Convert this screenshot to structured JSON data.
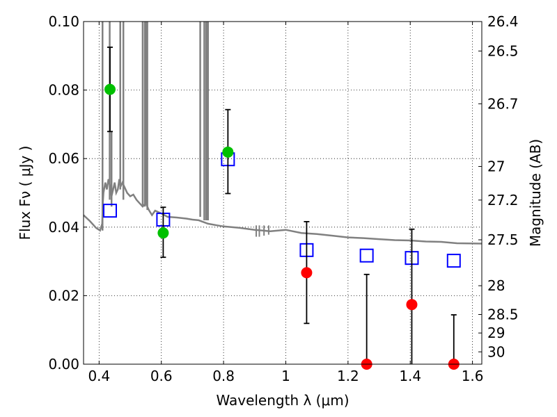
{
  "chart_data": {
    "type": "scatter",
    "xlabel": "Wavelength  λ (μm)",
    "ylabel": "Flux  Fν  ( μJy )",
    "y2label": "Magnitude (AB)",
    "xlim": [
      0.35,
      1.63
    ],
    "ylim": [
      0.0,
      0.1
    ],
    "grid": true,
    "grid_style": "dotted",
    "x_ticks": [
      0.4,
      0.6,
      0.8,
      1.0,
      1.2,
      1.4,
      1.6
    ],
    "x_tick_labels": [
      "0.4",
      "0.6",
      "0.8",
      "1",
      "1.2",
      "1.4",
      "1.6"
    ],
    "y_ticks": [
      0.0,
      0.02,
      0.04,
      0.06,
      0.08,
      0.1
    ],
    "y_tick_labels": [
      "0.00",
      "0.02",
      "0.04",
      "0.06",
      "0.08",
      "0.10"
    ],
    "y2_ticks": [
      {
        "label": "26.4",
        "flux": 0.1
      },
      {
        "label": "26.5",
        "flux": 0.0914
      },
      {
        "label": "26.7",
        "flux": 0.076
      },
      {
        "label": "27",
        "flux": 0.0577
      },
      {
        "label": "27.2",
        "flux": 0.0479
      },
      {
        "label": "27.5",
        "flux": 0.0363
      },
      {
        "label": "28",
        "flux": 0.0229
      },
      {
        "label": "28.5",
        "flux": 0.0145
      },
      {
        "label": "29",
        "flux": 0.0091
      },
      {
        "label": "30",
        "flux": 0.0036
      }
    ],
    "model_spectrum": {
      "color": "#808080",
      "x": [
        0.35,
        0.37,
        0.39,
        0.403,
        0.41,
        0.412,
        0.414,
        0.42,
        0.425,
        0.43,
        0.435,
        0.44,
        0.445,
        0.45,
        0.455,
        0.46,
        0.465,
        0.47,
        0.475,
        0.48,
        0.49,
        0.5,
        0.51,
        0.52,
        0.53,
        0.54,
        0.55,
        0.56,
        0.57,
        0.58,
        0.6,
        0.62,
        0.65,
        0.68,
        0.7,
        0.72,
        0.75,
        0.78,
        0.8,
        0.85,
        0.9,
        0.95,
        1.0,
        1.05,
        1.1,
        1.15,
        1.2,
        1.25,
        1.3,
        1.35,
        1.4,
        1.45,
        1.5,
        1.55,
        1.63
      ],
      "y": [
        0.0435,
        0.0418,
        0.0398,
        0.039,
        0.041,
        0.047,
        0.05,
        0.053,
        0.051,
        0.054,
        0.052,
        0.049,
        0.051,
        0.053,
        0.05,
        0.051,
        0.054,
        0.052,
        0.053,
        0.052,
        0.05,
        0.049,
        0.0495,
        0.048,
        0.047,
        0.046,
        0.047,
        0.045,
        0.0435,
        0.0448,
        0.044,
        0.043,
        0.0428,
        0.0425,
        0.0422,
        0.042,
        0.041,
        0.0405,
        0.0402,
        0.0398,
        0.0392,
        0.0388,
        0.0392,
        0.0383,
        0.038,
        0.0375,
        0.037,
        0.0368,
        0.0365,
        0.0362,
        0.0361,
        0.0358,
        0.0357,
        0.0353,
        0.0352
      ],
      "emission_lines": [
        {
          "x": 0.411,
          "ymin": 0.039,
          "ymax": 0.1
        },
        {
          "x": 0.434,
          "ymin": 0.048,
          "ymax": 0.1
        },
        {
          "x": 0.44,
          "ymin": 0.046,
          "ymax": 0.068
        },
        {
          "x": 0.468,
          "ymin": 0.051,
          "ymax": 0.1
        },
        {
          "x": 0.478,
          "ymin": 0.048,
          "ymax": 0.1
        },
        {
          "x": 0.54,
          "ymin": 0.046,
          "ymax": 0.1
        },
        {
          "x": 0.547,
          "ymin": 0.046,
          "ymax": 0.1
        },
        {
          "x": 0.551,
          "ymin": 0.047,
          "ymax": 0.1
        },
        {
          "x": 0.555,
          "ymin": 0.045,
          "ymax": 0.1
        },
        {
          "x": 0.725,
          "ymin": 0.043,
          "ymax": 0.1
        },
        {
          "x": 0.738,
          "ymin": 0.042,
          "ymax": 0.1
        },
        {
          "x": 0.744,
          "ymin": 0.042,
          "ymax": 0.1
        },
        {
          "x": 0.747,
          "ymin": 0.042,
          "ymax": 0.1
        },
        {
          "x": 0.75,
          "ymin": 0.042,
          "ymax": 0.1
        }
      ],
      "absorption_dips": [
        {
          "x": 0.905,
          "ymin": 0.0372,
          "ymax": 0.0405
        },
        {
          "x": 0.915,
          "ymin": 0.0372,
          "ymax": 0.0405
        },
        {
          "x": 0.93,
          "ymin": 0.0375,
          "ymax": 0.0405
        },
        {
          "x": 0.945,
          "ymin": 0.0378,
          "ymax": 0.0405
        }
      ]
    },
    "model_photometry": {
      "marker": "open-square",
      "color": "#0000ff",
      "x": [
        0.435,
        0.606,
        0.814,
        1.067,
        1.26,
        1.405,
        1.54
      ],
      "y": [
        0.0448,
        0.0422,
        0.0598,
        0.0333,
        0.0317,
        0.031,
        0.0302
      ]
    },
    "observed_detections": {
      "marker": "filled-circle",
      "color": "#00c000",
      "x": [
        0.435,
        0.606,
        0.814
      ],
      "y": [
        0.0802,
        0.0383,
        0.0619
      ],
      "err_low": [
        0.0679,
        0.0312,
        0.0498
      ],
      "err_high": [
        0.0925,
        0.0458,
        0.0743
      ]
    },
    "observed_low_sn": {
      "marker": "filled-circle",
      "color": "#ff0000",
      "x": [
        1.067,
        1.26,
        1.405,
        1.54
      ],
      "y": [
        0.0267,
        0.0,
        0.0174,
        0.0
      ],
      "err_low": [
        0.0119,
        0.0,
        0.0,
        0.0
      ],
      "err_high": [
        0.0416,
        0.0262,
        0.0394,
        0.0144
      ]
    }
  }
}
